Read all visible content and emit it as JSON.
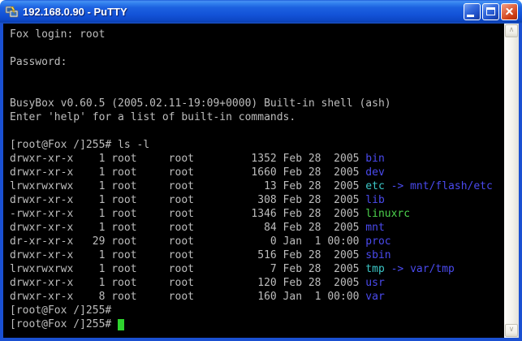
{
  "window": {
    "title": "192.168.0.90 - PuTTY",
    "app_icon": "putty-dual-terminals-icon",
    "controls": {
      "minimize": "minimize-icon",
      "maximize": "maximize-icon",
      "close": "close-icon"
    }
  },
  "colors": {
    "foreground": "#bdbdbd",
    "directory_blue": "#4a4aee",
    "symlink_cyan": "#3cc7c7",
    "executable_green": "#4cd24c",
    "cursor_green": "#2ed32e",
    "terminal_background": "#000000",
    "titlebar_blue": "#1353d8",
    "window_border_blue": "#1a50d2"
  },
  "scrollbar": {
    "up_glyph": "∧",
    "down_glyph": "∨"
  },
  "terminal": {
    "prompt": "[root@Fox /]255#",
    "lines": [
      [
        {
          "t": "Fox login: root",
          "c": "fg"
        }
      ],
      [],
      [
        {
          "t": "Password:",
          "c": "fg"
        }
      ],
      [],
      [],
      [
        {
          "t": "BusyBox v0.60.5 (2005.02.11-19:09+0000) Built-in shell (ash)",
          "c": "fg"
        }
      ],
      [
        {
          "t": "Enter 'help' for a list of built-in commands.",
          "c": "fg"
        }
      ],
      [],
      [
        {
          "t": "[root@Fox /]255# ls -l",
          "c": "fg"
        }
      ],
      [
        {
          "t": "drwxr-xr-x    1 root     root         1352 Feb 28  2005 ",
          "c": "fg"
        },
        {
          "t": "bin",
          "c": "blue"
        }
      ],
      [
        {
          "t": "drwxr-xr-x    1 root     root         1660 Feb 28  2005 ",
          "c": "fg"
        },
        {
          "t": "dev",
          "c": "blue"
        }
      ],
      [
        {
          "t": "lrwxrwxrwx    1 root     root           13 Feb 28  2005 ",
          "c": "fg"
        },
        {
          "t": "etc",
          "c": "cyan"
        },
        {
          "t": " -> ",
          "c": "blue"
        },
        {
          "t": "mnt/flash/etc",
          "c": "blue"
        }
      ],
      [
        {
          "t": "drwxr-xr-x    1 root     root          308 Feb 28  2005 ",
          "c": "fg"
        },
        {
          "t": "lib",
          "c": "blue"
        }
      ],
      [
        {
          "t": "-rwxr-xr-x    1 root     root         1346 Feb 28  2005 ",
          "c": "fg"
        },
        {
          "t": "linuxrc",
          "c": "green"
        }
      ],
      [
        {
          "t": "drwxr-xr-x    1 root     root           84 Feb 28  2005 ",
          "c": "fg"
        },
        {
          "t": "mnt",
          "c": "blue"
        }
      ],
      [
        {
          "t": "dr-xr-xr-x   29 root     root            0 Jan  1 00:00 ",
          "c": "fg"
        },
        {
          "t": "proc",
          "c": "blue"
        }
      ],
      [
        {
          "t": "drwxr-xr-x    1 root     root          516 Feb 28  2005 ",
          "c": "fg"
        },
        {
          "t": "sbin",
          "c": "blue"
        }
      ],
      [
        {
          "t": "lrwxrwxrwx    1 root     root            7 Feb 28  2005 ",
          "c": "fg"
        },
        {
          "t": "tmp",
          "c": "cyan"
        },
        {
          "t": " -> ",
          "c": "blue"
        },
        {
          "t": "var/tmp",
          "c": "blue"
        }
      ],
      [
        {
          "t": "drwxr-xr-x    1 root     root          120 Feb 28  2005 ",
          "c": "fg"
        },
        {
          "t": "usr",
          "c": "blue"
        }
      ],
      [
        {
          "t": "drwxr-xr-x    8 root     root          160 Jan  1 00:00 ",
          "c": "fg"
        },
        {
          "t": "var",
          "c": "blue"
        }
      ],
      [
        {
          "t": "[root@Fox /]255#",
          "c": "fg"
        }
      ],
      [
        {
          "t": "[root@Fox /]255# ",
          "c": "fg"
        },
        {
          "t": "",
          "c": "cursor"
        }
      ]
    ]
  }
}
